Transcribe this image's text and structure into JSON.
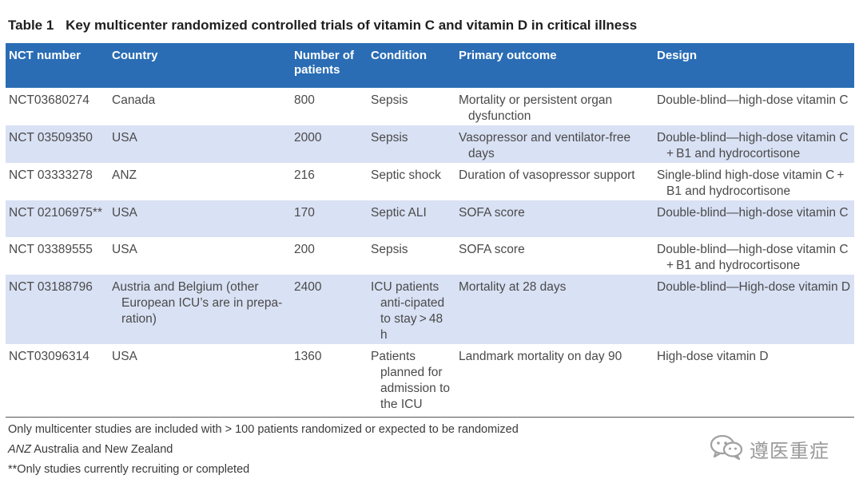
{
  "title": {
    "label": "Table 1",
    "text": "Key multicenter randomized controlled trials of vitamin C and vitamin D in critical illness"
  },
  "columns": [
    "NCT number",
    "Country",
    "Number of patients",
    "Condition",
    "Primary outcome",
    "Design"
  ],
  "rows": [
    {
      "nct": "NCT03680274",
      "country": "Canada",
      "patients": "800",
      "condition": "Sepsis",
      "outcome": "Mortality or persistent organ dysfunction",
      "design": "Double-blind—high-dose vitamin C"
    },
    {
      "nct": "NCT 03509350",
      "country": "USA",
      "patients": "2000",
      "condition": "Sepsis",
      "outcome": "Vasopressor and ventilator-free days",
      "design": "Double-blind—high-dose vitamin C + B1 and hydrocortisone"
    },
    {
      "nct": "NCT 03333278",
      "country": "ANZ",
      "patients": "216",
      "condition": "Septic shock",
      "outcome": "Duration of vasopressor support",
      "design": "Single-blind high-dose vitamin C + B1 and hydrocortisone"
    },
    {
      "nct": "NCT 02106975**",
      "country": "USA",
      "patients": "170",
      "condition": "Septic ALI",
      "outcome": "SOFA score",
      "design": "Double-blind—high-dose vitamin C"
    },
    {
      "nct": "NCT 03389555",
      "country": "USA",
      "patients": "200",
      "condition": "Sepsis",
      "outcome": "SOFA score",
      "design": "Double-blind—high-dose vitamin C + B1 and hydrocortisone"
    },
    {
      "nct": "NCT 03188796",
      "country": "Austria and Belgium (other European ICU’s are in prepa-ration)",
      "patients": "2400",
      "condition": "ICU patients anti-cipated to stay > 48 h",
      "outcome": "Mortality at 28 days",
      "design": "Double-blind—High-dose vitamin D"
    },
    {
      "nct": "NCT03096314",
      "country": "USA",
      "patients": "1360",
      "condition": "Patients planned for admission to the ICU",
      "outcome": "Landmark mortality on day 90",
      "design": "High-dose vitamin D"
    }
  ],
  "footnotes": {
    "note1": "Only multicenter studies are included with > 100 patients randomized or expected to be randomized",
    "note2_abbr": "ANZ",
    "note2_text": "Australia and New Zealand",
    "note3": "**Only studies currently recruiting or completed"
  },
  "watermark": {
    "icon": "wechat-icon",
    "text": "遵医重症"
  },
  "colors": {
    "header_bg": "#2a6db5",
    "alt_row_bg": "#d9e1f4"
  }
}
